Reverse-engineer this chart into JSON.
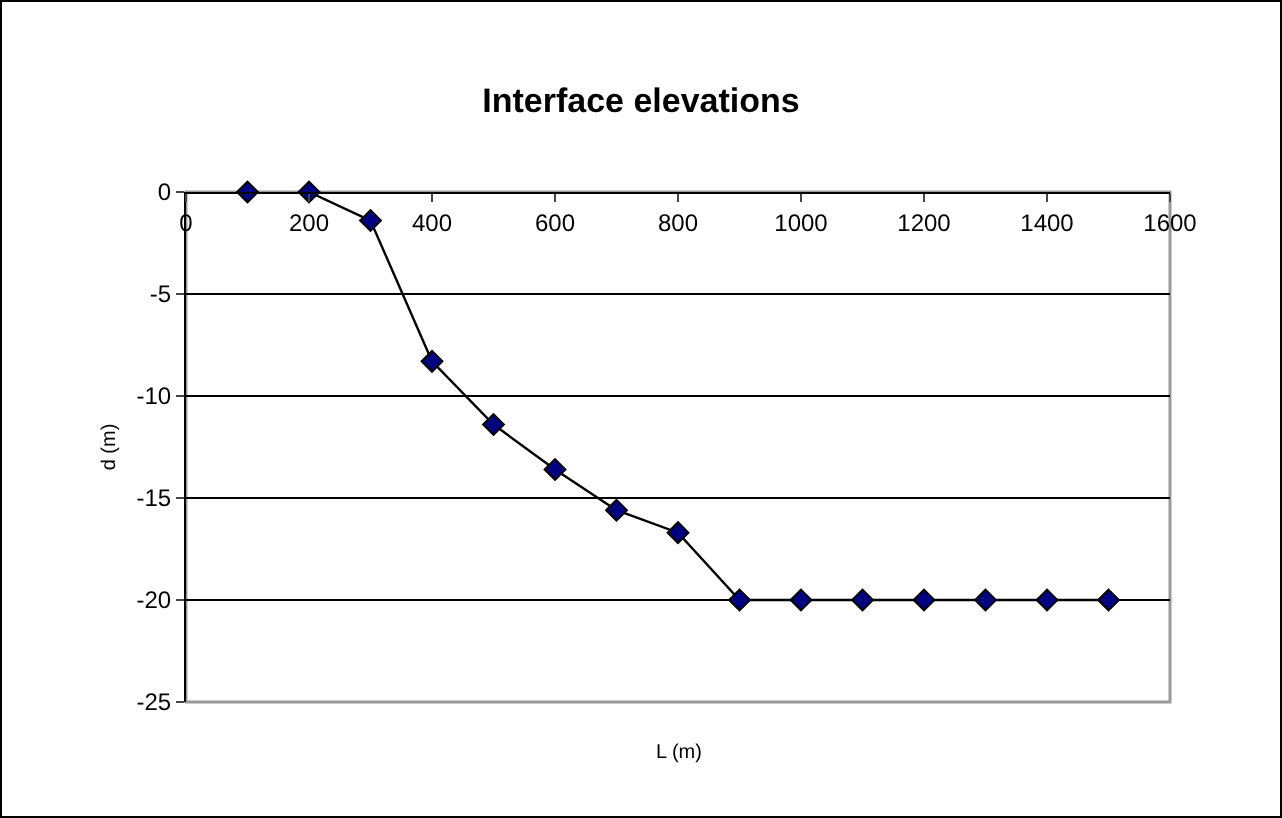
{
  "chart_data": {
    "type": "line",
    "title": "Interface elevations",
    "xlabel": "L (m)",
    "ylabel": "d (m)",
    "x": [
      100,
      200,
      300,
      400,
      500,
      600,
      700,
      800,
      900,
      1000,
      1100,
      1200,
      1300,
      1400,
      1500
    ],
    "series": [
      {
        "color": "#000080",
        "values": [
          0,
          0,
          -1.4,
          -8.3,
          -11.4,
          -13.6,
          -15.6,
          -16.7,
          -20,
          -20,
          -20,
          -20,
          -20,
          -20,
          -20
        ]
      }
    ],
    "xlim": [
      0,
      1600
    ],
    "xticks": [
      0,
      200,
      400,
      600,
      800,
      1000,
      1200,
      1400,
      1600
    ],
    "ylim": [
      -25,
      0
    ],
    "yticks": [
      -25,
      -20,
      -15,
      -10,
      -5,
      0
    ],
    "grid": "y",
    "marker": "diamond",
    "line_style": "solid"
  }
}
